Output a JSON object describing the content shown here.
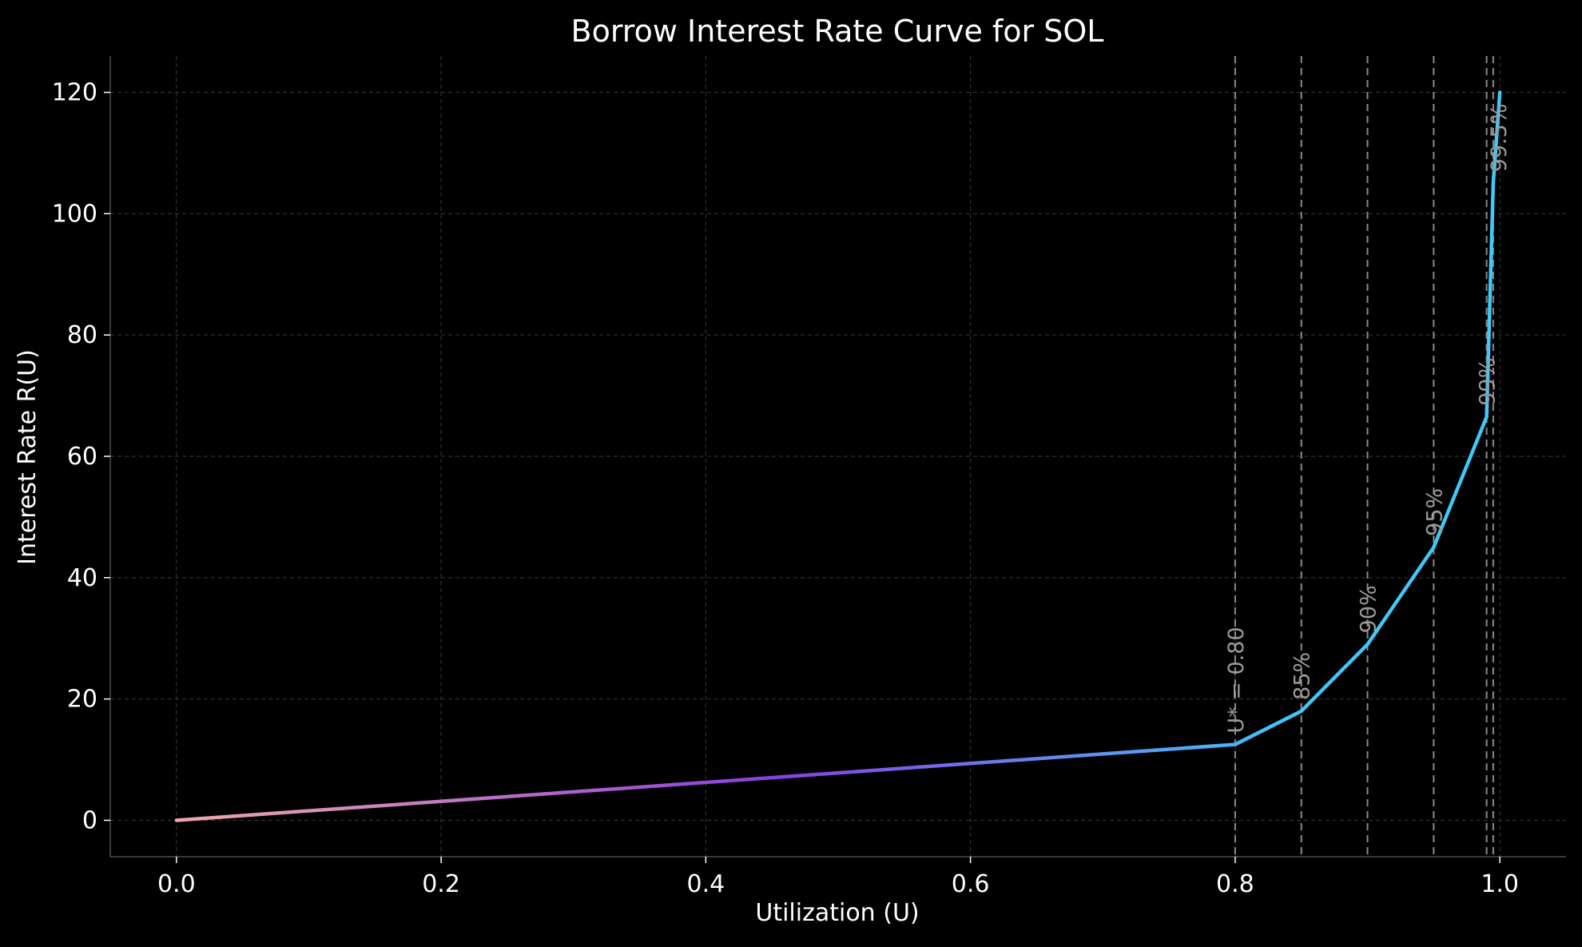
{
  "chart_data": {
    "type": "line",
    "title": "Borrow Interest Rate Curve for SOL",
    "xlabel": "Utilization (U)",
    "ylabel": "Interest Rate R(U)",
    "xlim": [
      -0.05,
      1.05
    ],
    "ylim": [
      -6,
      126
    ],
    "grid": true,
    "x_ticks": [
      0.0,
      0.2,
      0.4,
      0.6,
      0.8,
      1.0
    ],
    "x_tick_labels": [
      "0.0",
      "0.2",
      "0.4",
      "0.6",
      "0.8",
      "1.0"
    ],
    "y_ticks": [
      0,
      20,
      40,
      60,
      80,
      100,
      120
    ],
    "y_tick_labels": [
      "0",
      "20",
      "40",
      "60",
      "80",
      "100",
      "120"
    ],
    "series": [
      {
        "x": [
          0.0,
          0.8,
          0.85,
          0.9,
          0.95,
          0.99,
          0.995,
          1.0
        ],
        "y": [
          0,
          12.5,
          18,
          29,
          45,
          66.5,
          105,
          120
        ]
      }
    ],
    "gradient_colors": [
      "#f0a8a8",
      "#8a3ee0",
      "#40c8f8"
    ],
    "reference_lines": [
      {
        "x": 0.8,
        "label": "U* = 0.80"
      },
      {
        "x": 0.85,
        "label": "85%"
      },
      {
        "x": 0.9,
        "label": "90%"
      },
      {
        "x": 0.95,
        "label": "95%"
      },
      {
        "x": 0.99,
        "label": "99%"
      },
      {
        "x": 0.995,
        "label": "99.5%"
      }
    ],
    "colors": {
      "background": "#000000",
      "text": "#ffffff",
      "grid": "#3a3a3a",
      "reference_line": "#8a8a8a",
      "reference_label": "#9a9a9a"
    }
  }
}
